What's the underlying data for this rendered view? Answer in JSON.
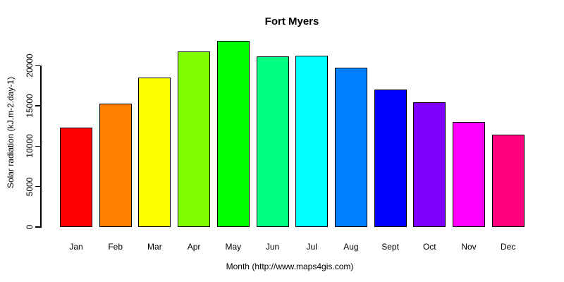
{
  "chart_data": {
    "type": "bar",
    "title": "Fort Myers",
    "xlabel": "Month (http://www.maps4gis.com)",
    "ylabel": "Solar radiation (kJ.m-2.day-1)",
    "categories": [
      "Jan",
      "Feb",
      "Mar",
      "Apr",
      "May",
      "Jun",
      "Jul",
      "Aug",
      "Sept",
      "Oct",
      "Nov",
      "Dec"
    ],
    "values": [
      12300,
      15300,
      18500,
      21700,
      23000,
      21100,
      21200,
      19700,
      17000,
      15400,
      13000,
      11400
    ],
    "bar_colors": [
      "#FF0000",
      "#FF8000",
      "#FFFF00",
      "#80FF00",
      "#00FF00",
      "#00FF80",
      "#00FFFF",
      "#0080FF",
      "#0000FF",
      "#8000FF",
      "#FF00FF",
      "#FF0080"
    ],
    "yticks": [
      0,
      5000,
      10000,
      15000,
      20000
    ],
    "ylim": [
      0,
      23700
    ],
    "grid": false,
    "legend": null,
    "bar_border_color": "#000000",
    "text_color": "#000000",
    "background": "#FFFFFF"
  }
}
